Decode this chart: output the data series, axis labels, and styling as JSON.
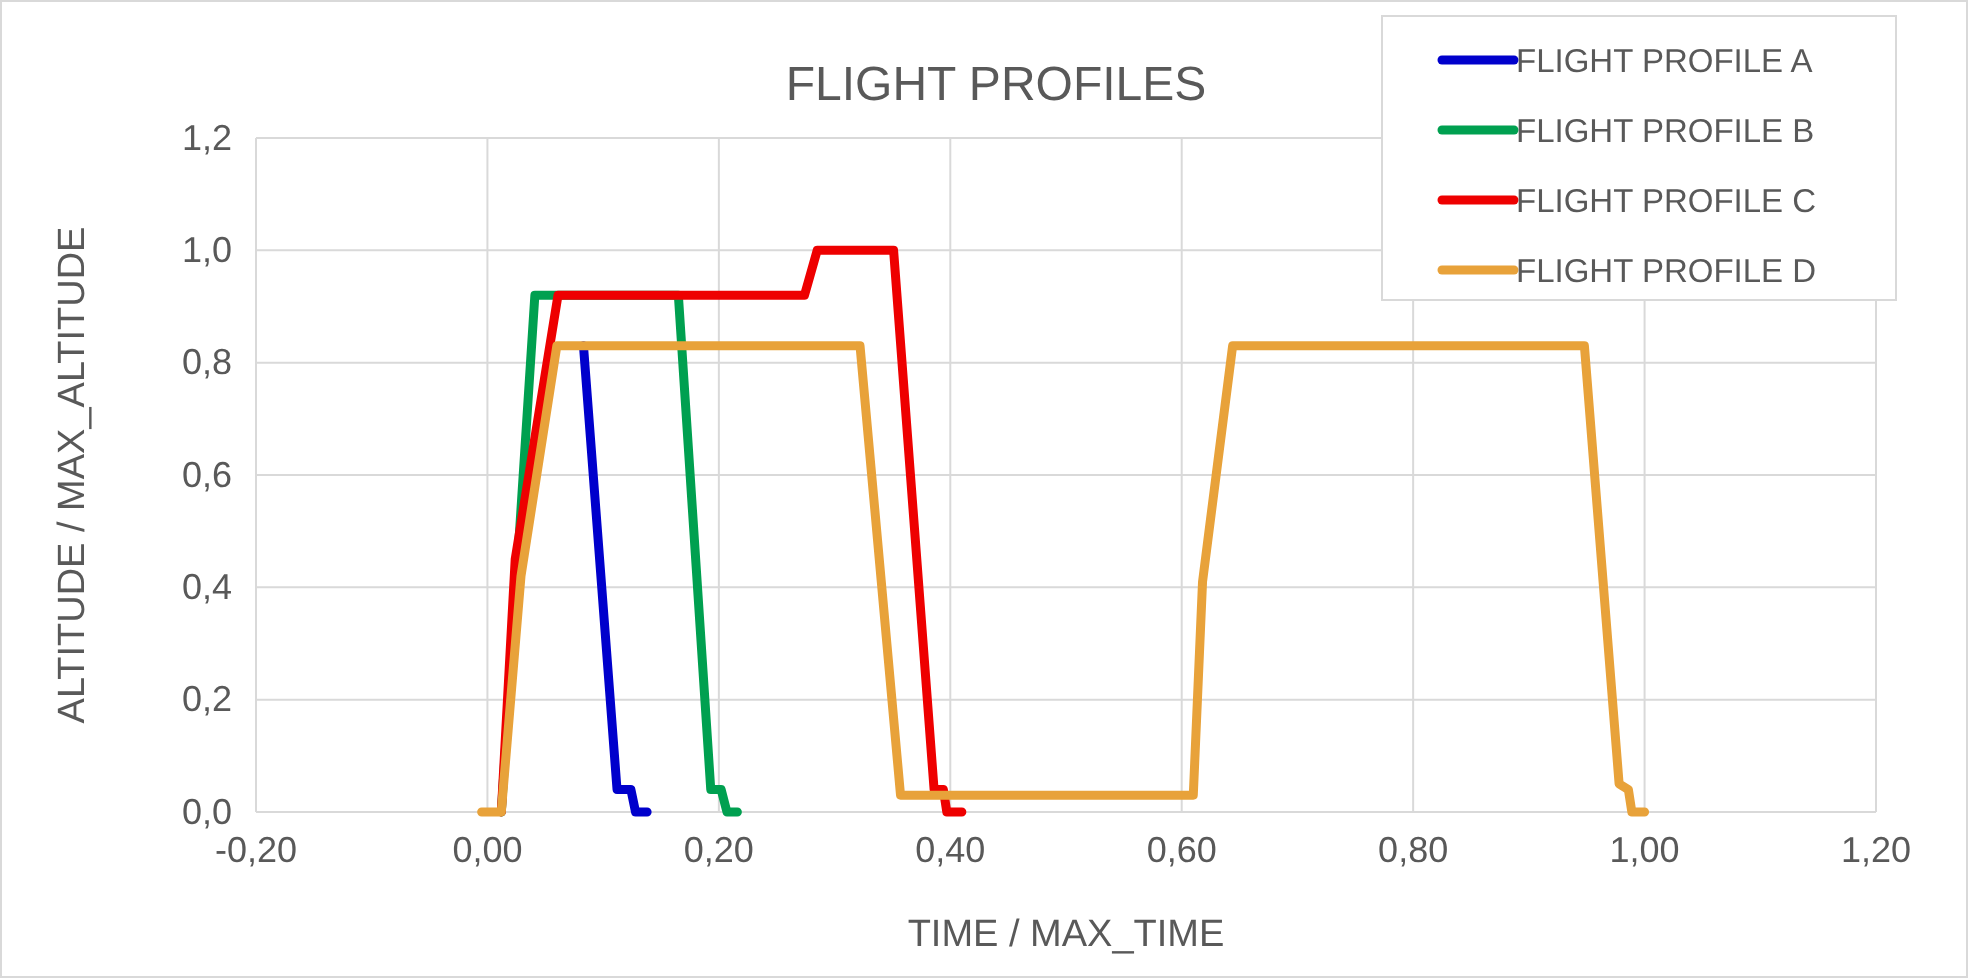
{
  "chart_data": {
    "type": "line",
    "title": "FLIGHT PROFILES",
    "xlabel": "TIME / MAX_TIME",
    "ylabel": "ALTITUDE / MAX_ALTITUDE",
    "xlim": [
      -0.2,
      1.2
    ],
    "xticks": [
      {
        "value": -0.2,
        "label": "-0,20"
      },
      {
        "value": 0,
        "label": "0,00"
      },
      {
        "value": 0.2,
        "label": "0,20"
      },
      {
        "value": 0.4,
        "label": "0,40"
      },
      {
        "value": 0.6,
        "label": "0,60"
      },
      {
        "value": 0.8,
        "label": "0,80"
      },
      {
        "value": 1,
        "label": "1,00"
      },
      {
        "value": 1.2,
        "label": "1,20"
      }
    ],
    "ylim": [
      0,
      1.2
    ],
    "yticks": [
      {
        "value": 0,
        "label": "0,0"
      },
      {
        "value": 0.2,
        "label": "0,2"
      },
      {
        "value": 0.4,
        "label": "0,4"
      },
      {
        "value": 0.6,
        "label": "0,6"
      },
      {
        "value": 0.8,
        "label": "0,8"
      },
      {
        "value": 1,
        "label": "1,0"
      },
      {
        "value": 1.2,
        "label": "1,2"
      }
    ],
    "grid": true,
    "legend": "top right",
    "marker": "none",
    "line_style": "solid",
    "series": [
      {
        "name": "FLIGHT PROFILE A",
        "color": "#0000cc",
        "x": [
          0.083,
          0.112,
          0.124,
          0.128,
          0.138
        ],
        "values": [
          0.83,
          0.04,
          0.04,
          0,
          0
        ]
      },
      {
        "name": "FLIGHT PROFILE B",
        "color": "#00a050",
        "x": [
          0.012,
          0.041,
          0.055,
          0.165,
          0.193,
          0.202,
          0.207,
          0.216
        ],
        "values": [
          0,
          0.92,
          0.92,
          0.92,
          0.04,
          0.04,
          0,
          0
        ]
      },
      {
        "name": "FLIGHT PROFILE C",
        "color": "#ee0000",
        "x": [
          0.012,
          0.024,
          0.061,
          0.274,
          0.285,
          0.351,
          0.386,
          0.394,
          0.397,
          0.41
        ],
        "values": [
          0,
          0.45,
          0.92,
          0.92,
          1,
          1,
          0.04,
          0.04,
          0,
          0
        ]
      },
      {
        "name": "FLIGHT PROFILE D",
        "color": "#e8a23a",
        "x": [
          -0.005,
          0.012,
          0.029,
          0.06,
          0.322,
          0.357,
          0.61,
          0.618,
          0.644,
          0.948,
          0.978,
          0.986,
          0.989,
          1.0
        ],
        "values": [
          0,
          0,
          0.42,
          0.83,
          0.83,
          0.03,
          0.03,
          0.41,
          0.83,
          0.83,
          0.05,
          0.04,
          0,
          0
        ]
      }
    ]
  }
}
